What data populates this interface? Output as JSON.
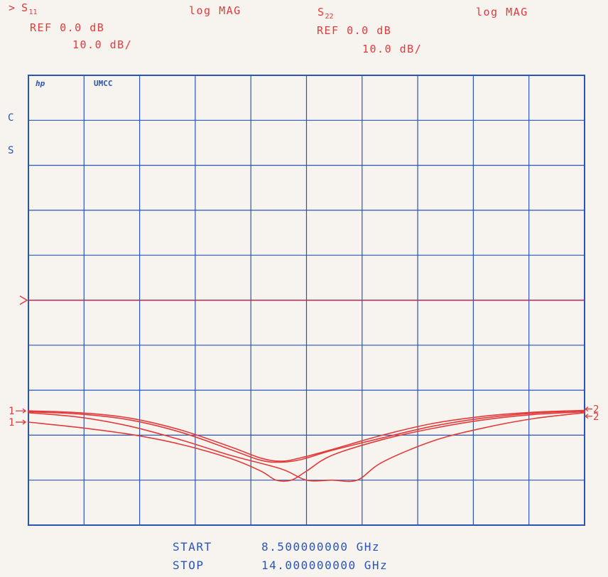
{
  "header": {
    "marker": ">",
    "s11": {
      "main": "S",
      "sub": "11",
      "format": "log MAG",
      "ref": "REF 0.0 dB",
      "scale": "10.0 dB/"
    },
    "s22": {
      "main": "S",
      "sub": "22",
      "format": "log MAG",
      "ref": "REF 0.0 dB",
      "scale": "10.0 dB/"
    }
  },
  "plot_tags": {
    "brand": "hp",
    "label": "UMCC"
  },
  "side_marks": [
    "C",
    "S"
  ],
  "sweep": {
    "start_label": "START",
    "start_value": "8.500000000 GHz",
    "stop_label": "STOP",
    "stop_value": "14.000000000 GHz"
  },
  "trace_labels": {
    "left": [
      "1",
      "1"
    ],
    "right": [
      "2",
      "2"
    ]
  },
  "colors": {
    "trace": "#e23b3b",
    "grid": "#2a55b8",
    "ref_line": "#b0325a",
    "background": "#f7f4ef"
  },
  "chart_data": {
    "type": "line",
    "title": "",
    "xlabel": "",
    "ylabel": "",
    "xlim": [
      8.5,
      14.0
    ],
    "ylim": [
      -50,
      0
    ],
    "reference_level_db": 0.0,
    "scale_db_per_div": 10.0,
    "grid": true,
    "series": [
      {
        "x": [
          8.5,
          9.0,
          9.5,
          10.0,
          10.5,
          10.8,
          11.0,
          11.2,
          11.5,
          12.0,
          12.5,
          13.0,
          13.5,
          14.0
        ],
        "y": [
          -24.6,
          -25.0,
          -26.2,
          -28.8,
          -32.6,
          -35.1,
          -35.8,
          -35.0,
          -33.2,
          -30.0,
          -27.4,
          -25.8,
          -24.9,
          -24.5
        ]
      },
      {
        "x": [
          8.5,
          9.0,
          9.5,
          10.0,
          10.5,
          10.8,
          11.0,
          11.2,
          11.5,
          12.0,
          12.5,
          13.0,
          13.5,
          14.0
        ],
        "y": [
          -24.8,
          -25.3,
          -26.6,
          -29.3,
          -33.2,
          -35.6,
          -36.0,
          -35.4,
          -33.4,
          -30.6,
          -28.0,
          -26.2,
          -25.1,
          -24.6
        ]
      },
      {
        "x": [
          8.5,
          9.0,
          9.5,
          10.0,
          10.5,
          10.8,
          10.95,
          11.1,
          11.25,
          11.5,
          12.0,
          12.5,
          13.0,
          13.5,
          14.0
        ],
        "y": [
          -27.1,
          -28.3,
          -29.8,
          -32.0,
          -35.2,
          -38.0,
          -40.0,
          -40.0,
          -38.0,
          -34.5,
          -31.0,
          -28.5,
          -26.6,
          -25.4,
          -24.8
        ]
      },
      {
        "x": [
          8.5,
          9.0,
          9.5,
          10.0,
          10.5,
          11.0,
          11.25,
          11.5,
          11.75,
          12.0,
          12.5,
          13.0,
          13.5,
          14.0
        ],
        "y": [
          -25.0,
          -26.0,
          -28.0,
          -31.0,
          -34.5,
          -37.5,
          -40.0,
          -40.0,
          -40.0,
          -36.0,
          -31.3,
          -28.4,
          -26.3,
          -25.0
        ]
      }
    ]
  }
}
